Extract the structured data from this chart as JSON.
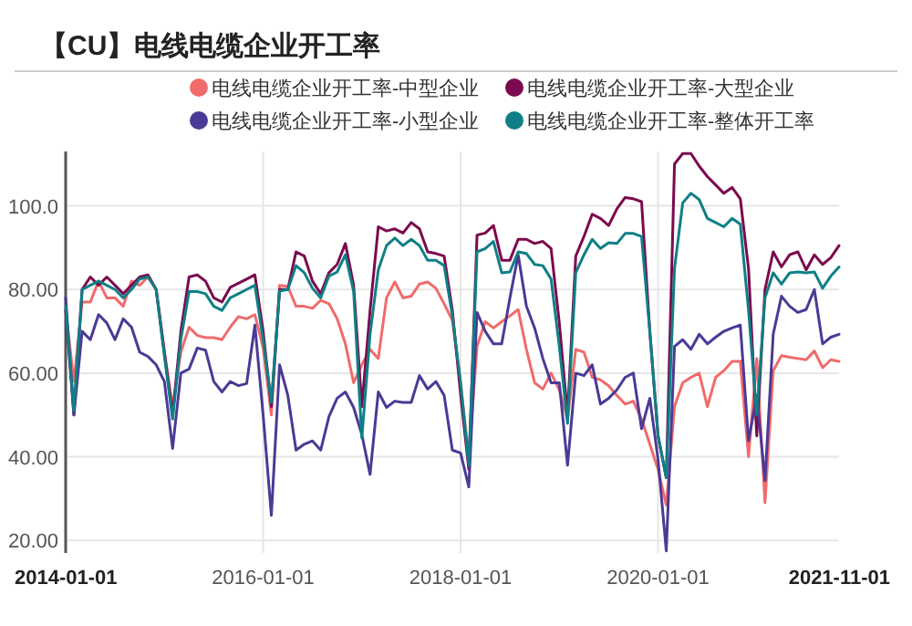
{
  "chart_data": {
    "type": "line",
    "title": "【CU】电线电缆企业开工率",
    "x": [
      "2014-01",
      "2014-02",
      "2014-03",
      "2014-04",
      "2014-05",
      "2014-06",
      "2014-07",
      "2014-08",
      "2014-09",
      "2014-10",
      "2014-11",
      "2014-12",
      "2015-01",
      "2015-02",
      "2015-03",
      "2015-04",
      "2015-05",
      "2015-06",
      "2015-07",
      "2015-08",
      "2015-09",
      "2015-10",
      "2015-11",
      "2015-12",
      "2016-01",
      "2016-02",
      "2016-03",
      "2016-04",
      "2016-05",
      "2016-06",
      "2016-07",
      "2016-08",
      "2016-09",
      "2016-10",
      "2016-11",
      "2016-12",
      "2017-01",
      "2017-02",
      "2017-03",
      "2017-04",
      "2017-05",
      "2017-06",
      "2017-07",
      "2017-08",
      "2017-09",
      "2017-10",
      "2017-11",
      "2017-12",
      "2018-01",
      "2018-02",
      "2018-03",
      "2018-04",
      "2018-05",
      "2018-06",
      "2018-07",
      "2018-08",
      "2018-09",
      "2018-10",
      "2018-11",
      "2018-12",
      "2019-01",
      "2019-02",
      "2019-03",
      "2019-04",
      "2019-05",
      "2019-06",
      "2019-07",
      "2019-08",
      "2019-09",
      "2019-10",
      "2019-11",
      "2019-12",
      "2020-01",
      "2020-02",
      "2020-03",
      "2020-04",
      "2020-05",
      "2020-06",
      "2020-07",
      "2020-08",
      "2020-09",
      "2020-10",
      "2020-11",
      "2020-12",
      "2021-01",
      "2021-02",
      "2021-03",
      "2021-04",
      "2021-05",
      "2021-06",
      "2021-07",
      "2021-08",
      "2021-09",
      "2021-10",
      "2021-11"
    ],
    "series": [
      {
        "name": "电线电缆企业开工率-中型企业",
        "color": "#f06b6b",
        "values": [
          75,
          58,
          77,
          77,
          82,
          78,
          78,
          76,
          82,
          81,
          83,
          80,
          65,
          52,
          65,
          71,
          69,
          68.5,
          68.5,
          68,
          71,
          73.5,
          73,
          74,
          66,
          50,
          81,
          80.7,
          76,
          76,
          75.5,
          77.4,
          76.6,
          73,
          67,
          57.7,
          62,
          65.7,
          63.5,
          78,
          81.8,
          78,
          78.4,
          81.3,
          81.8,
          80.3,
          76.6,
          72.6,
          57.7,
          40,
          66.4,
          72.3,
          70.8,
          72.3,
          73.7,
          75.2,
          65.7,
          57.7,
          56.2,
          60,
          56,
          49,
          65.7,
          65,
          59,
          58.4,
          57,
          54.7,
          52.6,
          53.3,
          49,
          43,
          37,
          28.5,
          52,
          57.7,
          59,
          60,
          52,
          59,
          60.6,
          62.8,
          62.8,
          40,
          63.5,
          29,
          60.6,
          64.2,
          63.8,
          63.5,
          63.2,
          65.3,
          61.3,
          63.2,
          62.8
        ]
      },
      {
        "name": "电线电缆企业开工率-大型企业",
        "color": "#7b0a4e",
        "values": [
          75,
          50,
          80,
          83,
          81,
          83,
          81,
          79,
          81,
          83,
          83.5,
          80,
          65,
          50,
          70,
          83,
          83.5,
          82,
          78,
          77,
          80.5,
          81.5,
          82.5,
          83.5,
          70,
          52,
          80,
          80,
          89,
          88,
          82,
          79,
          84,
          86,
          91,
          81,
          52,
          75,
          95,
          94,
          94.5,
          93.5,
          96,
          94.5,
          89,
          88.6,
          88,
          75,
          55,
          37,
          93,
          93.5,
          95.3,
          87,
          87,
          92,
          92,
          91,
          91.5,
          89.8,
          72,
          50,
          88,
          92.7,
          98,
          97,
          95.3,
          99.3,
          102,
          101.7,
          101,
          70,
          45,
          35,
          110,
          112.5,
          112.5,
          109.5,
          107,
          105,
          103,
          104.4,
          101.7,
          85,
          45,
          80,
          89,
          85.4,
          88.3,
          89,
          84.7,
          88.3,
          86,
          87.6,
          90.5
        ]
      },
      {
        "name": "电线电缆企业开工率-小型企业",
        "color": "#4b3a95",
        "values": [
          78,
          50,
          70,
          68,
          74,
          72,
          68,
          73,
          71,
          65,
          64,
          62,
          58,
          42,
          60,
          61,
          66,
          65.5,
          58,
          55.5,
          58,
          57,
          57.5,
          71.5,
          50,
          26,
          62,
          54.7,
          41.6,
          43,
          43.8,
          41.6,
          49.6,
          54,
          55.5,
          51.8,
          45.3,
          35.8,
          55.5,
          51.8,
          53.3,
          53,
          53,
          59.4,
          56.2,
          58,
          54.7,
          41.6,
          40.9,
          32.8,
          74.5,
          70,
          67,
          67,
          78,
          88.3,
          76,
          70.8,
          63.5,
          57.7,
          57.7,
          38,
          60,
          59.4,
          62,
          52.6,
          54,
          56,
          59,
          60,
          46.7,
          54,
          39.4,
          17.5,
          66.4,
          68,
          65.7,
          69.3,
          67,
          68.6,
          70,
          70.8,
          71.5,
          43.8,
          54.7,
          34.3,
          69.3,
          78.4,
          76,
          74.5,
          75.2,
          80,
          67,
          68.6,
          69.3
        ]
      },
      {
        "name": "电线电缆企业开工率-整体开工率",
        "color": "#0f7f86",
        "values": [
          76,
          51,
          80,
          81,
          82,
          81,
          80,
          78,
          80,
          82.5,
          83,
          80,
          64,
          49,
          68,
          79.5,
          79.5,
          79,
          76,
          75,
          78,
          79,
          80,
          81,
          68,
          53,
          79.6,
          80,
          85.7,
          84,
          80.3,
          78,
          83.2,
          84.2,
          88.3,
          79.6,
          44.5,
          69.3,
          84.7,
          90.5,
          92.3,
          90.5,
          92,
          90.5,
          87,
          87,
          85.7,
          73.7,
          57.7,
          38,
          89,
          89.8,
          91.5,
          84,
          84.2,
          89,
          88.6,
          86,
          85.7,
          82.5,
          66.4,
          48,
          84,
          88.3,
          92,
          89.8,
          91.2,
          91,
          93.4,
          93.4,
          92.7,
          70,
          45,
          35,
          85,
          100.7,
          103,
          101.5,
          97,
          96,
          95,
          97,
          95.6,
          75,
          50,
          78,
          84,
          81.3,
          84,
          84.2,
          84,
          84.2,
          80.3,
          83.2,
          85.4
        ]
      }
    ],
    "xlim": [
      "2014-01-01",
      "2021-11-01"
    ],
    "xticks": [
      "2014-01-01",
      "2016-01-01",
      "2018-01-01",
      "2020-01-01",
      "2021-11-01"
    ],
    "ylim": [
      17,
      113
    ],
    "yticks": [
      {
        "value": 20,
        "label": "20.00"
      },
      {
        "value": 40,
        "label": "40.00"
      },
      {
        "value": 60,
        "label": "60.00"
      },
      {
        "value": 80,
        "label": "80.00"
      },
      {
        "value": 100,
        "label": "100.0"
      }
    ],
    "grid": true,
    "legend": "top",
    "marker": "none",
    "line_style": "solid"
  }
}
